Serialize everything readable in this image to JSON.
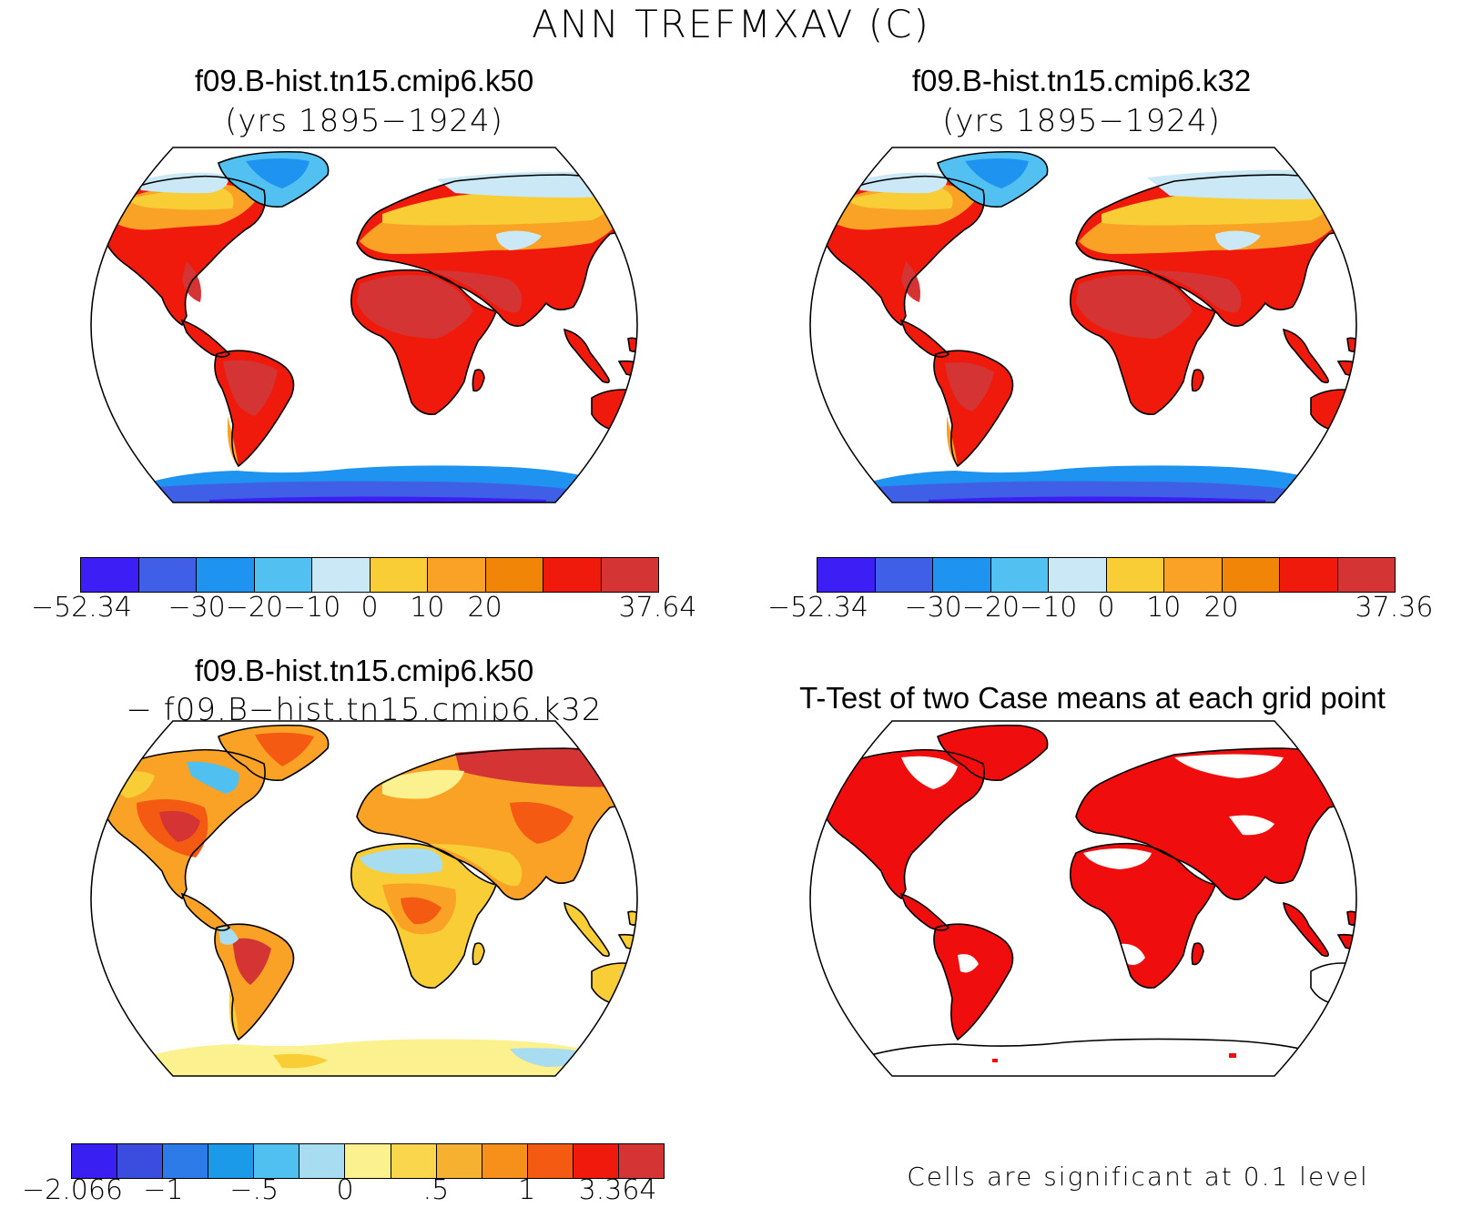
{
  "title": "ANN TREFMXAV (C)",
  "palette": {
    "abs": [
      "#3d1ff5",
      "#3f5fe6",
      "#1f93f0",
      "#52c1f2",
      "#cbe8f7",
      "#f8cd35",
      "#f9a225",
      "#f08508",
      "#f01a0c",
      "#d43434"
    ],
    "diff": [
      "#3a1ff3",
      "#3a4dde",
      "#2c7be8",
      "#1a9ae8",
      "#4fc0f0",
      "#a8dcf0",
      "#fbf28f",
      "#f9d64b",
      "#f7b130",
      "#f6901a",
      "#f45a12",
      "#f01a0c",
      "#d43434"
    ],
    "sig": "#f00d0d",
    "land_outline": "#000000"
  },
  "panels": [
    {
      "id": "k50",
      "case_name": "f09.B-hist.tn15.cmip6.k50",
      "subtitle": "(yrs 1895−1924)",
      "colorbar_type": "abs",
      "colorbar_labels": [
        "−52.34",
        "−30",
        "−20",
        "−10",
        "0",
        "10",
        "20",
        "37.64"
      ]
    },
    {
      "id": "k32",
      "case_name": "f09.B-hist.tn15.cmip6.k32",
      "subtitle": "(yrs 1895−1924)",
      "colorbar_type": "abs",
      "colorbar_labels": [
        "−52.34",
        "−30",
        "−20",
        "−10",
        "0",
        "10",
        "20",
        "37.36"
      ]
    },
    {
      "id": "diff",
      "case_name": "f09.B-hist.tn15.cmip6.k50",
      "subtitle": "− f09.B−hist.tn15.cmip6.k32",
      "colorbar_type": "diff",
      "colorbar_labels": [
        "−2.066",
        "−1",
        "−.5",
        "0",
        ".5",
        "1",
        "3.364"
      ]
    },
    {
      "id": "ttest",
      "case_name": "T-Test of two Case means at each grid point",
      "note": "Cells are significant at 0.1 level"
    }
  ]
}
